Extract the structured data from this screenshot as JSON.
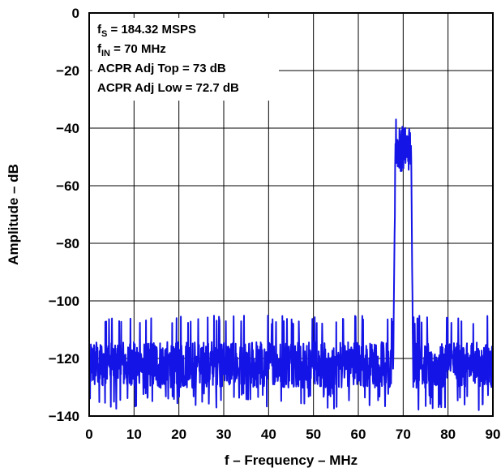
{
  "chart_data": {
    "type": "line",
    "title": "",
    "xlabel": "f – Frequency – MHz",
    "ylabel": "Amplitude – dB",
    "xlim": [
      0,
      90
    ],
    "ylim": [
      -140,
      0
    ],
    "xticks": [
      0,
      10,
      20,
      30,
      40,
      50,
      60,
      70,
      80,
      90
    ],
    "xtick_labels": [
      "0",
      "10",
      "20",
      "30",
      "40",
      "50",
      "60",
      "70",
      "80",
      "90"
    ],
    "yticks": [
      0,
      -20,
      -40,
      -60,
      -80,
      -100,
      -120,
      -140
    ],
    "ytick_labels": [
      "0",
      "−20",
      "−40",
      "−60",
      "−80",
      "−100",
      "−120",
      "−140"
    ],
    "grid": true,
    "line_color": "#1414e6",
    "annotations": [
      {
        "main": "f",
        "sub": "S",
        "rest": " = 184.32 MSPS"
      },
      {
        "main": "f",
        "sub": "IN",
        "rest": " = 70 MHz"
      },
      {
        "main": "ACPR Adj Top = 73 dB",
        "sub": "",
        "rest": ""
      },
      {
        "main": "ACPR Adj Low = 72.7 dB",
        "sub": "",
        "rest": ""
      }
    ],
    "series": [
      {
        "noise_floor_db": -122,
        "noise_min_db": -138,
        "noise_max_db": -108,
        "carrier_start_mhz": 67.8,
        "carrier_end_mhz": 72.2,
        "carrier_level_db": -47,
        "carrier_peak_db": -37,
        "carrier_min_db": -56
      }
    ]
  }
}
